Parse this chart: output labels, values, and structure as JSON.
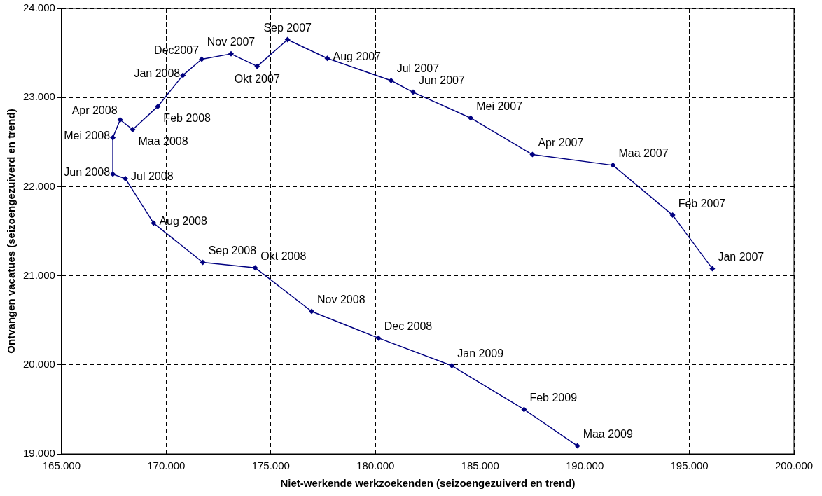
{
  "chart_data": {
    "type": "line",
    "xlabel": "Niet-werkende werkzoekenden (seizoengezuiverd en trend)",
    "ylabel": "Ontvangen vacatues (seizoengezuiverd en trend)",
    "series": [
      {
        "color": "#000080",
        "x": [
          196100,
          194200,
          191350,
          187500,
          184550,
          181800,
          180750,
          177700,
          175800,
          174350,
          173100,
          171700,
          170800,
          169600,
          168400,
          167800,
          167450,
          167450,
          168050,
          169400,
          171750,
          174250,
          176950,
          180150,
          183650,
          187100,
          189650
        ],
        "values": [
          21080,
          21680,
          22240,
          22360,
          22770,
          23060,
          23190,
          23440,
          23650,
          23350,
          23490,
          23430,
          23250,
          22900,
          22640,
          22750,
          22550,
          22140,
          22090,
          21590,
          21150,
          21090,
          20600,
          20300,
          19990,
          19500,
          19090
        ]
      }
    ],
    "annotations": [
      {
        "text": "Jan 2007",
        "x": 196100,
        "y": 21080
      },
      {
        "text": "Feb 2007",
        "x": 194200,
        "y": 21680
      },
      {
        "text": "Maa 2007",
        "x": 191350,
        "y": 22240
      },
      {
        "text": "Apr 2007",
        "x": 187500,
        "y": 22360
      },
      {
        "text": "Mei 2007",
        "x": 184550,
        "y": 22770
      },
      {
        "text": "Jun 2007",
        "x": 181800,
        "y": 23060
      },
      {
        "text": "Jul 2007",
        "x": 180750,
        "y": 23190
      },
      {
        "text": "Aug 2007",
        "x": 177700,
        "y": 23440
      },
      {
        "text": "Sep 2007",
        "x": 175800,
        "y": 23650
      },
      {
        "text": "Okt 2007",
        "x": 174350,
        "y": 23350
      },
      {
        "text": "Nov 2007",
        "x": 173100,
        "y": 23490
      },
      {
        "text": "Dec2007",
        "x": 171700,
        "y": 23430
      },
      {
        "text": "Jan 2008",
        "x": 170800,
        "y": 23250
      },
      {
        "text": "Feb 2008",
        "x": 169600,
        "y": 22900
      },
      {
        "text": "Maa 2008",
        "x": 168400,
        "y": 22640
      },
      {
        "text": "Apr 2008",
        "x": 167800,
        "y": 22750
      },
      {
        "text": "Mei 2008",
        "x": 167450,
        "y": 22550
      },
      {
        "text": "Jun 2008",
        "x": 167450,
        "y": 22140
      },
      {
        "text": "Jul 2008",
        "x": 168050,
        "y": 22090
      },
      {
        "text": "Aug 2008",
        "x": 169400,
        "y": 21590
      },
      {
        "text": "Sep 2008",
        "x": 171750,
        "y": 21150
      },
      {
        "text": "Okt 2008",
        "x": 174250,
        "y": 21090
      },
      {
        "text": "Nov 2008",
        "x": 176950,
        "y": 20600
      },
      {
        "text": "Dec 2008",
        "x": 180150,
        "y": 20300
      },
      {
        "text": "Jan 2009",
        "x": 183650,
        "y": 19990
      },
      {
        "text": "Feb 2009",
        "x": 187100,
        "y": 19500
      },
      {
        "text": "Maa 2009",
        "x": 189650,
        "y": 19090
      }
    ],
    "xlim": [
      165000,
      200000
    ],
    "xticks": [
      {
        "value": 165000,
        "label": "165.000"
      },
      {
        "value": 170000,
        "label": "170.000"
      },
      {
        "value": 175000,
        "label": "175.000"
      },
      {
        "value": 180000,
        "label": "180.000"
      },
      {
        "value": 185000,
        "label": "185.000"
      },
      {
        "value": 190000,
        "label": "190.000"
      },
      {
        "value": 195000,
        "label": "195.000"
      },
      {
        "value": 200000,
        "label": "200.000"
      }
    ],
    "ylim": [
      19000,
      24000
    ],
    "yticks": [
      {
        "value": 19000,
        "label": "19.000"
      },
      {
        "value": 20000,
        "label": "20.000"
      },
      {
        "value": 21000,
        "label": "21.000"
      },
      {
        "value": 22000,
        "label": "22.000"
      },
      {
        "value": 23000,
        "label": "23.000"
      },
      {
        "value": 24000,
        "label": "24.000"
      }
    ],
    "grid": true,
    "legend": false,
    "marker": "diamond",
    "line_style": "solid"
  }
}
